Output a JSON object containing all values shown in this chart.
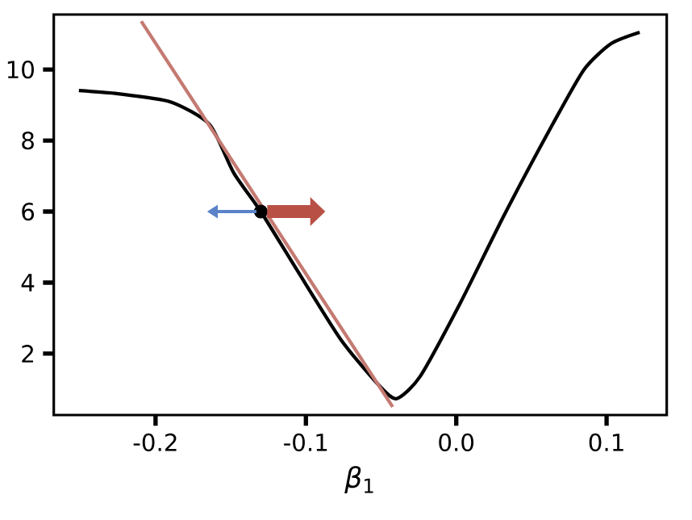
{
  "chart_data": {
    "type": "line",
    "xlabel": "*β*$_{1}$",
    "xlim": [
      -0.2677,
      0.14
    ],
    "ylim": [
      0.27,
      11.55
    ],
    "xticks": [
      {
        "value": -0.2,
        "label": "-0.2"
      },
      {
        "value": -0.1,
        "label": "-0.1"
      },
      {
        "value": 0.0,
        "label": "0.0"
      },
      {
        "value": 0.1,
        "label": "0.1"
      }
    ],
    "yticks": [
      2,
      4,
      6,
      8,
      10
    ],
    "grid": false,
    "series": [
      {
        "type": "line",
        "color": "#000000",
        "marker": "none",
        "x": [
          -0.251,
          -0.225,
          -0.19,
          -0.164,
          -0.148,
          -0.13,
          -0.106,
          -0.077,
          -0.053,
          -0.04,
          -0.024,
          0.003,
          0.032,
          0.064,
          0.085,
          0.103,
          0.122
        ],
        "values": [
          9.41,
          9.32,
          9.09,
          8.45,
          7.09,
          6.0,
          4.36,
          2.41,
          1.18,
          0.73,
          1.36,
          3.45,
          5.91,
          8.45,
          10.0,
          10.73,
          11.05
        ]
      },
      {
        "type": "line",
        "color": "#c47a72",
        "marker": "none",
        "x": [
          -0.2095,
          -0.0423
        ],
        "values": [
          11.36,
          0.5
        ]
      },
      {
        "type": "scatter",
        "color": "#000000",
        "marker": "circle",
        "x": [
          -0.13
        ],
        "values": [
          6.0
        ]
      }
    ]
  }
}
